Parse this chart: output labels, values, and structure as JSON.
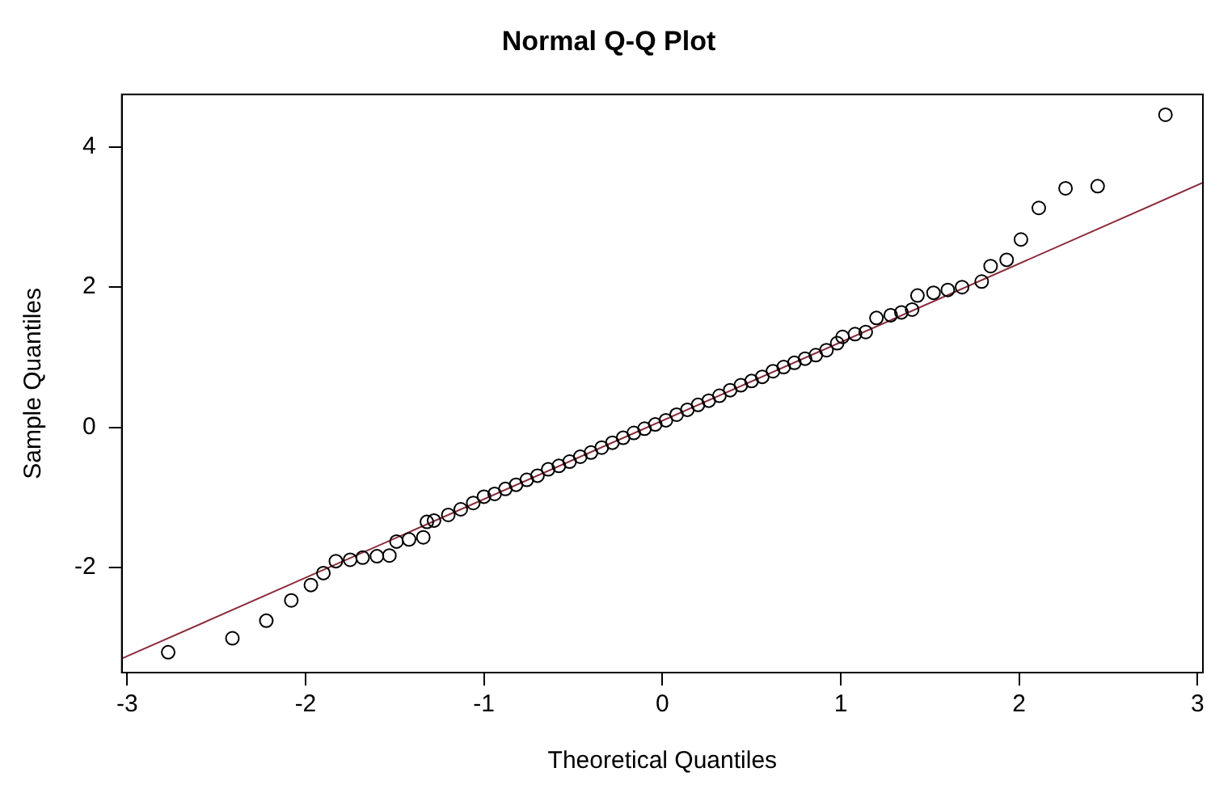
{
  "chart_data": {
    "type": "scatter",
    "title": "Normal Q-Q Plot",
    "xlabel": "Theoretical Quantiles",
    "ylabel": "Sample Quantiles",
    "xlim": [
      -3.03,
      3.03
    ],
    "ylim": [
      -3.5,
      4.75
    ],
    "xticks": [
      -3,
      -2,
      -1,
      0,
      1,
      2,
      3
    ],
    "yticks": [
      -2,
      0,
      2,
      4
    ],
    "grid": false,
    "legend": false,
    "marker": "circle",
    "series": [
      {
        "color": "#000000",
        "x": [
          -2.77,
          -2.41,
          -2.22,
          -2.08,
          -1.97,
          -1.9,
          -1.83,
          -1.75,
          -1.68,
          -1.6,
          -1.53,
          -1.49,
          -1.42,
          -1.34,
          -1.32,
          -1.28,
          -1.2,
          -1.13,
          -1.06,
          -1.0,
          -0.94,
          -0.88,
          -0.82,
          -0.76,
          -0.7,
          -0.64,
          -0.58,
          -0.52,
          -0.46,
          -0.4,
          -0.34,
          -0.28,
          -0.22,
          -0.16,
          -0.1,
          -0.04,
          0.02,
          0.08,
          0.14,
          0.2,
          0.26,
          0.32,
          0.38,
          0.44,
          0.5,
          0.56,
          0.62,
          0.68,
          0.74,
          0.8,
          0.86,
          0.92,
          0.98,
          1.01,
          1.08,
          1.14,
          1.2,
          1.28,
          1.34,
          1.4,
          1.43,
          1.52,
          1.6,
          1.68,
          1.79,
          1.84,
          1.93,
          2.01,
          2.11,
          2.26,
          2.44,
          2.82
        ],
        "values": [
          -3.21,
          -3.01,
          -2.76,
          -2.47,
          -2.25,
          -2.08,
          -1.91,
          -1.89,
          -1.86,
          -1.84,
          -1.83,
          -1.63,
          -1.6,
          -1.57,
          -1.35,
          -1.33,
          -1.25,
          -1.17,
          -1.08,
          -0.99,
          -0.95,
          -0.88,
          -0.82,
          -0.75,
          -0.69,
          -0.6,
          -0.55,
          -0.49,
          -0.42,
          -0.36,
          -0.29,
          -0.22,
          -0.15,
          -0.08,
          -0.02,
          0.04,
          0.1,
          0.18,
          0.25,
          0.32,
          0.38,
          0.45,
          0.53,
          0.6,
          0.66,
          0.72,
          0.8,
          0.86,
          0.92,
          0.98,
          1.03,
          1.1,
          1.2,
          1.29,
          1.33,
          1.36,
          1.56,
          1.6,
          1.64,
          1.68,
          1.88,
          1.92,
          1.96,
          2.0,
          2.08,
          2.3,
          2.39,
          2.68,
          3.13,
          3.41,
          3.44,
          4.46
        ]
      },
      {
        "type": "line",
        "color": "#8b2a3a",
        "marker": "none",
        "x": [
          -3.03,
          3.03
        ],
        "values": [
          -3.3,
          3.49
        ]
      }
    ]
  }
}
